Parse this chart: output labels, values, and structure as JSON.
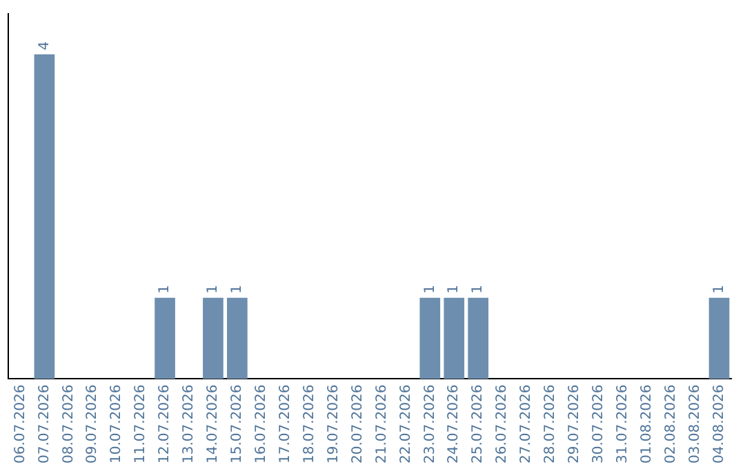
{
  "chart_data": {
    "type": "bar",
    "categories": [
      "06.07.2026",
      "07.07.2026",
      "08.07.2026",
      "09.07.2026",
      "10.07.2026",
      "11.07.2026",
      "12.07.2026",
      "13.07.2026",
      "14.07.2026",
      "15.07.2026",
      "16.07.2026",
      "17.07.2026",
      "18.07.2026",
      "19.07.2026",
      "20.07.2026",
      "21.07.2026",
      "22.07.2026",
      "23.07.2026",
      "24.07.2026",
      "25.07.2026",
      "26.07.2026",
      "27.07.2026",
      "28.07.2026",
      "29.07.2026",
      "30.07.2026",
      "31.07.2026",
      "01.08.2026",
      "02.08.2026",
      "03.08.2026",
      "04.08.2026"
    ],
    "values": [
      0,
      4,
      0,
      0,
      0,
      0,
      1,
      0,
      1,
      1,
      0,
      0,
      0,
      0,
      0,
      0,
      0,
      1,
      1,
      1,
      0,
      0,
      0,
      0,
      0,
      0,
      0,
      0,
      0,
      1
    ],
    "value_labels": [
      null,
      "4",
      null,
      null,
      null,
      null,
      "1",
      null,
      "1",
      "1",
      null,
      null,
      null,
      null,
      null,
      null,
      null,
      "1",
      "1",
      "1",
      null,
      null,
      null,
      null,
      null,
      null,
      null,
      null,
      null,
      "1"
    ],
    "color": "#6d8eae",
    "tick_labels": "x"
  }
}
